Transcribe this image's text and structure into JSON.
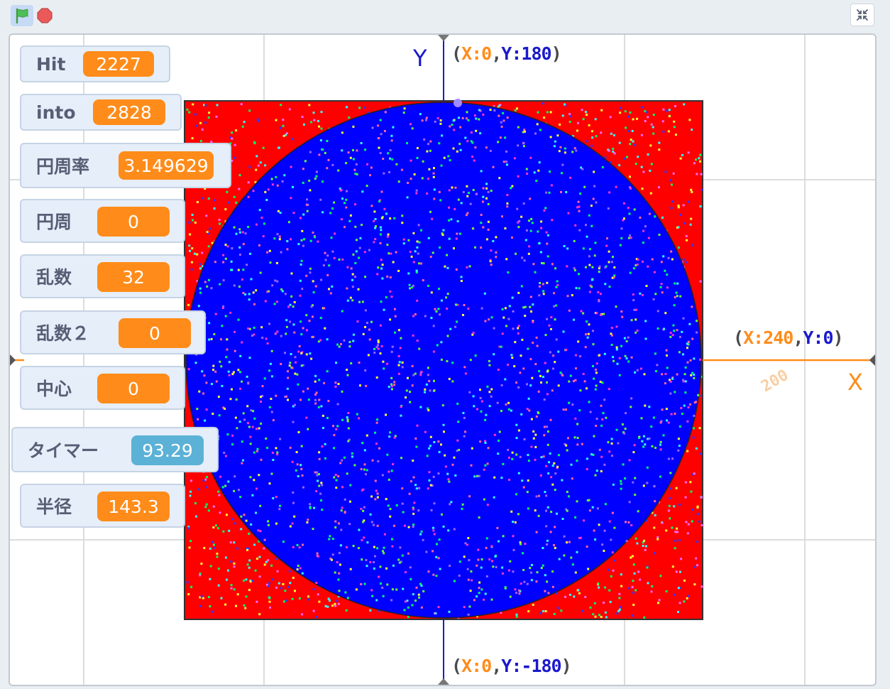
{
  "toolbar": {
    "green_flag_icon": "green-flag-icon",
    "stop_icon": "stop-sign-icon",
    "fullscreen_icon": "exit-fullscreen-icon"
  },
  "stage": {
    "coordinate_labels": {
      "top": {
        "x_key": "X:",
        "x_val": "0",
        "y_key": "Y:",
        "y_val": "180"
      },
      "right": {
        "x_key": "X:",
        "x_val": "240",
        "y_key": "Y:",
        "y_val": "0"
      },
      "bottom": {
        "x_key": "X:",
        "x_val": "0",
        "y_key": "Y:",
        "y_val": "-180"
      }
    },
    "axis_labels": {
      "x": "X",
      "y": "Y"
    },
    "tick_label": "200",
    "colors": {
      "square": "#ff0000",
      "circle": "#0000ff",
      "x_axis": "#ff8c1a",
      "y_axis": "#1a1acc"
    }
  },
  "monitors": [
    {
      "label": "Hit",
      "value": "2227"
    },
    {
      "label": "into",
      "value": "2828"
    },
    {
      "label": "円周率",
      "value": "3.149629"
    },
    {
      "label": "円周",
      "value": "0"
    },
    {
      "label": "乱数",
      "value": "32"
    },
    {
      "label": "乱数２",
      "value": "0"
    },
    {
      "label": "中心",
      "value": "0"
    },
    {
      "label": "タイマー",
      "value": "93.29"
    },
    {
      "label": "半径",
      "value": "143.3"
    }
  ]
}
